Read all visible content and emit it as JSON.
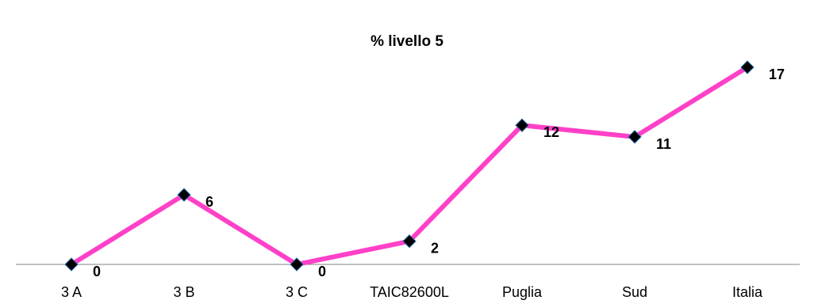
{
  "chart_data": {
    "type": "line",
    "title": "% livello 5",
    "xlabel": "",
    "ylabel": "",
    "categories": [
      "3 A",
      "3 B",
      "3 C",
      "TAIC82600L",
      "Puglia",
      "Sud",
      "Italia"
    ],
    "series": [
      {
        "values": [
          0,
          6,
          0,
          2,
          12,
          11,
          17
        ],
        "data_labels": [
          "0",
          "6",
          "0",
          "2",
          "12",
          "11",
          "17"
        ]
      }
    ],
    "ylim": [
      0,
      17
    ],
    "grid": false,
    "legend": "none",
    "colors": {
      "line": "#ff40c8",
      "marker": "#000000",
      "marker_outline": "#2e6ea8",
      "axis": "#808080"
    }
  }
}
